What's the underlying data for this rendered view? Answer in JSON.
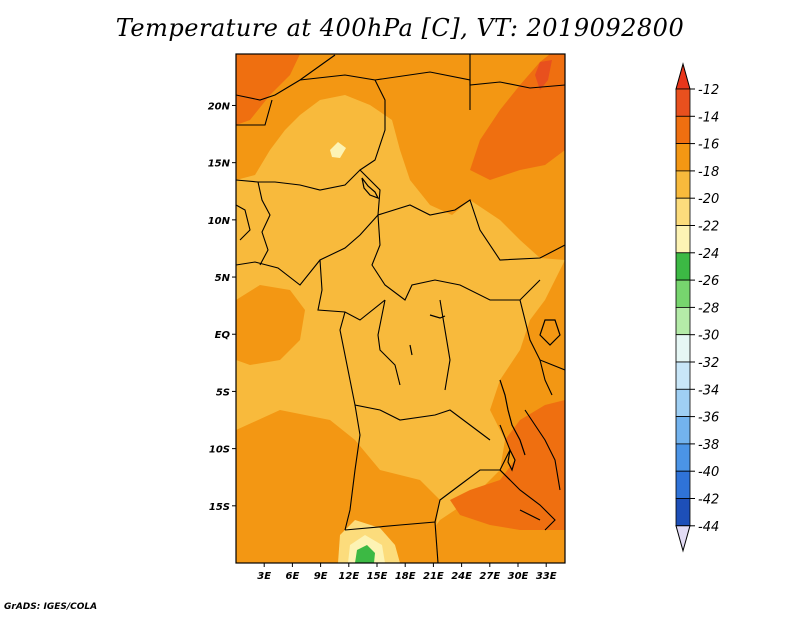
{
  "chart_data": {
    "type": "heatmap",
    "title": "Temperature at 400hPa [C], VT: 2019092800",
    "x_ticks": [
      "3E",
      "6E",
      "9E",
      "12E",
      "15E",
      "18E",
      "21E",
      "24E",
      "27E",
      "30E",
      "33E"
    ],
    "y_ticks": [
      "20N",
      "15N",
      "10N",
      "5N",
      "EQ",
      "5S",
      "10S",
      "15S"
    ],
    "x_range_deg": [
      0,
      35
    ],
    "y_range_deg": [
      -20,
      24.5
    ],
    "colorbar": {
      "levels": [
        "-12",
        "-14",
        "-16",
        "-18",
        "-20",
        "-22",
        "-24",
        "-26",
        "-28",
        "-30",
        "-32",
        "-34",
        "-36",
        "-38",
        "-40",
        "-42",
        "-44"
      ],
      "colors": [
        "#e8501e",
        "#ef6f10",
        "#f39713",
        "#f8ba3c",
        "#fcdc7c",
        "#fdf3b4",
        "#3cb944",
        "#77d56e",
        "#b4eba8",
        "#e6f7f5",
        "#c8e6f8",
        "#9fcff3",
        "#73b3ee",
        "#4b94e6",
        "#2f73d8",
        "#1d4fb8",
        "#0c2b8a"
      ],
      "top_color": "#e8361b",
      "bottom_color": "#e3dcf5"
    },
    "footer": "GrADS: IGES/COLA"
  }
}
